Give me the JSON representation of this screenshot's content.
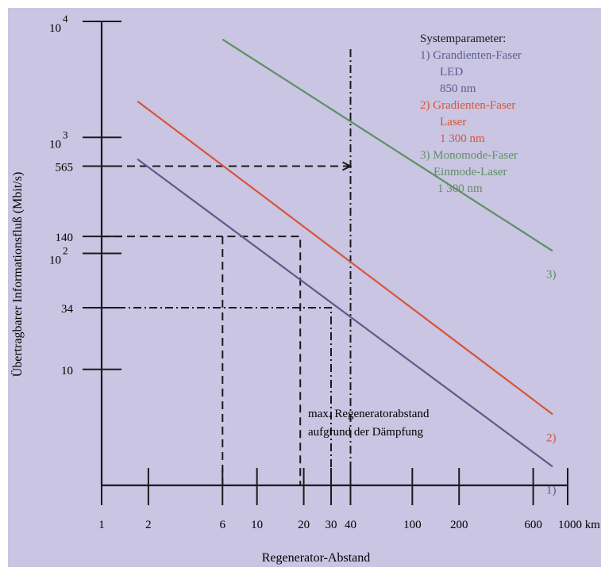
{
  "colors": {
    "background": "#c9c5e2",
    "axis": "#1a1a1a",
    "guides": "#1a1a1a",
    "series1": "#5b5c8c",
    "series2": "#d9533a",
    "series3": "#5f8f63"
  },
  "chart_data": {
    "type": "line",
    "xscale": "log",
    "yscale": "log",
    "xlabel": "Regenerator-Abstand",
    "ylabel": "Übertragbarer Informationsfluß (Mbit/s)",
    "xlim": [
      1,
      1000
    ],
    "ylim": [
      1,
      10000
    ],
    "x_ticks": [
      {
        "value": 1,
        "label": "1"
      },
      {
        "value": 2,
        "label": "2"
      },
      {
        "value": 6,
        "label": "6"
      },
      {
        "value": 10,
        "label": "10"
      },
      {
        "value": 20,
        "label": "20"
      },
      {
        "value": 30,
        "label": "30"
      },
      {
        "value": 40,
        "label": "40"
      },
      {
        "value": 100,
        "label": "100"
      },
      {
        "value": 200,
        "label": "200"
      },
      {
        "value": 600,
        "label": "600"
      },
      {
        "value": 1000,
        "label": "1000 km"
      }
    ],
    "y_ticks": [
      {
        "value": 10,
        "label": "10"
      },
      {
        "value": 34,
        "label": "34"
      },
      {
        "value": 100,
        "base": "10",
        "exp": "2"
      },
      {
        "value": 140,
        "label": "140"
      },
      {
        "value": 565,
        "label": "565"
      },
      {
        "value": 1000,
        "base": "10",
        "exp": "3"
      },
      {
        "value": 10000,
        "base": "10",
        "exp": "4"
      }
    ],
    "series": [
      {
        "id": "s1",
        "color_key": "series1",
        "end_label": "1)",
        "x": [
          1.7,
          800
        ],
        "y": [
          650,
          1.45
        ]
      },
      {
        "id": "s2",
        "color_key": "series2",
        "end_label": "2)",
        "x": [
          1.7,
          800
        ],
        "y": [
          2050,
          4.1
        ]
      },
      {
        "id": "s3",
        "color_key": "series3",
        "end_label": "3)",
        "x": [
          6,
          800
        ],
        "y": [
          7000,
          105
        ]
      }
    ],
    "legend": {
      "title": "Systemparameter:",
      "placement": "top-right",
      "items": [
        {
          "color_key": "series1",
          "lines": [
            "1) Grandienten-Faser",
            "LED",
            "850 nm"
          ]
        },
        {
          "color_key": "series2",
          "lines": [
            "2) Gradienten-Faser",
            "Laser",
            "1 300 nm"
          ]
        },
        {
          "color_key": "series3",
          "lines": [
            "3) Monomode-Faser",
            "Einmode-Laser",
            "1 300 nm"
          ]
        }
      ]
    },
    "annotation": {
      "lines": [
        "max. Regeneratorabstand",
        "aufgrund der Dämpfung"
      ]
    },
    "guides": [
      {
        "style": "dashed",
        "points": [
          [
            1,
            565
          ],
          [
            40,
            565
          ]
        ],
        "arrow": true
      },
      {
        "style": "dashed",
        "points": [
          [
            6,
            1
          ],
          [
            6,
            140
          ],
          [
            19,
            140
          ],
          [
            19,
            1
          ]
        ]
      },
      {
        "style": "dashed",
        "points": [
          [
            1,
            140
          ],
          [
            6,
            140
          ]
        ]
      },
      {
        "style": "dashdot",
        "points": [
          [
            1,
            34
          ],
          [
            30,
            34
          ],
          [
            30,
            1
          ]
        ]
      },
      {
        "style": "dashdot",
        "points": [
          [
            40,
            1
          ],
          [
            40,
            6000
          ]
        ]
      }
    ]
  }
}
